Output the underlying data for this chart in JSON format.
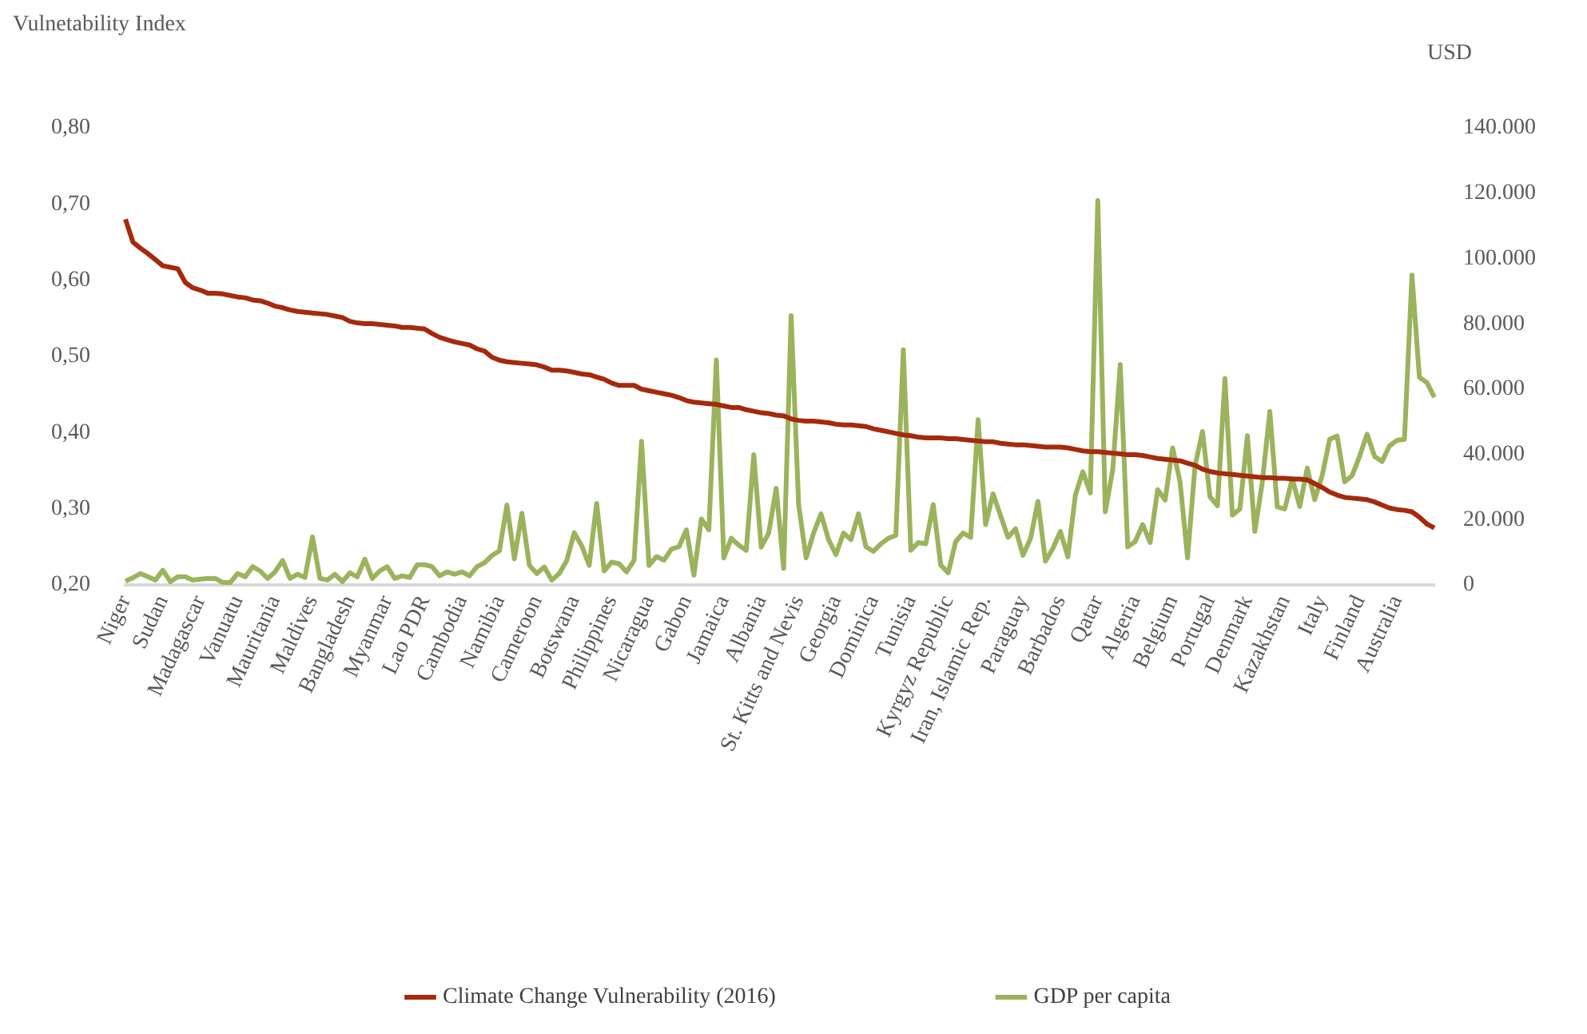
{
  "chart_data": {
    "type": "line",
    "ylabel": "Vulnetability Index",
    "y2label": "USD",
    "categories": [
      "Niger",
      null,
      null,
      null,
      null,
      "Sudan",
      null,
      null,
      null,
      null,
      "Madagascar",
      null,
      null,
      null,
      null,
      "Vanuatu",
      null,
      null,
      null,
      null,
      "Mauritania",
      null,
      null,
      null,
      null,
      "Maldives",
      null,
      null,
      null,
      null,
      "Bangladesh",
      null,
      null,
      null,
      null,
      "Myanmar",
      null,
      null,
      null,
      null,
      "Lao PDR",
      null,
      null,
      null,
      null,
      "Cambodia",
      null,
      null,
      null,
      null,
      "Namibia",
      null,
      null,
      null,
      null,
      "Cameroon",
      null,
      null,
      null,
      null,
      "Botswana",
      null,
      null,
      null,
      null,
      "Philippines",
      null,
      null,
      null,
      null,
      "Nicaragua",
      null,
      null,
      null,
      null,
      "Gabon",
      null,
      null,
      null,
      null,
      "Jamaica",
      null,
      null,
      null,
      null,
      "Albania",
      null,
      null,
      null,
      null,
      "St. Kitts and Nevis",
      null,
      null,
      null,
      null,
      "Georgia",
      null,
      null,
      null,
      null,
      "Dominica",
      null,
      null,
      null,
      null,
      "Tunisia",
      null,
      null,
      null,
      null,
      "Kyrgyz Republic",
      null,
      null,
      null,
      null,
      "Iran, Islamic Rep.",
      null,
      null,
      null,
      null,
      "Paraguay",
      null,
      null,
      null,
      null,
      "Barbados",
      null,
      null,
      null,
      null,
      "Qatar",
      null,
      null,
      null,
      null,
      "Algeria",
      null,
      null,
      null,
      null,
      "Belgium",
      null,
      null,
      null,
      null,
      "Portugal",
      null,
      null,
      null,
      null,
      "Denmark",
      null,
      null,
      null,
      null,
      "Kazakhstan",
      null,
      null,
      null,
      null,
      "Italy",
      null,
      null,
      null,
      null,
      "Finland",
      null,
      null,
      null,
      null,
      "Australia",
      null,
      null,
      null,
      null,
      null
    ],
    "series": [
      {
        "name": "Climate Change Vulnerability (2016)",
        "color": "#a52a0c",
        "values": [
          0.68,
          0.65,
          0.642,
          0.635,
          0.627,
          0.619,
          0.617,
          0.615,
          0.597,
          0.59,
          0.587,
          0.583,
          0.583,
          0.582,
          0.58,
          0.578,
          0.577,
          0.574,
          0.573,
          0.57,
          0.566,
          0.564,
          0.561,
          0.559,
          0.558,
          0.557,
          0.556,
          0.555,
          0.553,
          0.551,
          0.546,
          0.544,
          0.543,
          0.543,
          0.542,
          0.541,
          0.54,
          0.538,
          0.538,
          0.537,
          0.536,
          0.53,
          0.525,
          0.522,
          0.519,
          0.517,
          0.515,
          0.51,
          0.507,
          0.499,
          0.495,
          0.493,
          0.492,
          0.491,
          0.49,
          0.489,
          0.486,
          0.482,
          0.482,
          0.481,
          0.479,
          0.477,
          0.476,
          0.473,
          0.47,
          0.465,
          0.462,
          0.462,
          0.462,
          0.457,
          0.455,
          0.453,
          0.451,
          0.449,
          0.446,
          0.442,
          0.44,
          0.439,
          0.438,
          0.437,
          0.435,
          0.433,
          0.433,
          0.43,
          0.428,
          0.426,
          0.425,
          0.423,
          0.422,
          0.418,
          0.416,
          0.415,
          0.415,
          0.414,
          0.413,
          0.411,
          0.41,
          0.41,
          0.409,
          0.408,
          0.405,
          0.403,
          0.401,
          0.399,
          0.397,
          0.396,
          0.394,
          0.393,
          0.393,
          0.393,
          0.392,
          0.392,
          0.391,
          0.39,
          0.389,
          0.388,
          0.388,
          0.386,
          0.385,
          0.384,
          0.384,
          0.383,
          0.382,
          0.381,
          0.381,
          0.381,
          0.38,
          0.378,
          0.376,
          0.375,
          0.375,
          0.374,
          0.373,
          0.372,
          0.371,
          0.371,
          0.37,
          0.368,
          0.366,
          0.365,
          0.364,
          0.363,
          0.36,
          0.357,
          0.352,
          0.349,
          0.347,
          0.346,
          0.345,
          0.344,
          0.343,
          0.342,
          0.341,
          0.341,
          0.34,
          0.34,
          0.339,
          0.339,
          0.338,
          0.333,
          0.328,
          0.322,
          0.318,
          0.315,
          0.314,
          0.313,
          0.312,
          0.309,
          0.305,
          0.301,
          0.299,
          0.298,
          0.296,
          0.289,
          0.28,
          0.275
        ]
      },
      {
        "name": "GDP per capita",
        "color": "#9bb35c",
        "axis": "y2",
        "values": [
          1200,
          2200,
          3500,
          2500,
          1500,
          4500,
          1000,
          2500,
          2500,
          1500,
          1800,
          2000,
          2000,
          800,
          700,
          3500,
          2500,
          5600,
          4300,
          2000,
          4000,
          7500,
          2000,
          3300,
          2300,
          14700,
          2000,
          1500,
          3300,
          1000,
          3700,
          2500,
          7900,
          2000,
          4300,
          5600,
          2000,
          2800,
          2300,
          6200,
          6200,
          5600,
          2800,
          4000,
          3300,
          4000,
          2800,
          5600,
          6800,
          9000,
          10500,
          24500,
          8000,
          22000,
          6000,
          3500,
          5500,
          1500,
          3500,
          7500,
          16000,
          12000,
          6000,
          25000,
          4300,
          7000,
          6500,
          4000,
          7500,
          44000,
          6000,
          8700,
          7600,
          11000,
          11700,
          16900,
          3000,
          20200,
          16900,
          68900,
          8300,
          14300,
          12200,
          10600,
          39900,
          11600,
          15900,
          29600,
          5100,
          82500,
          24600,
          8300,
          15900,
          21800,
          13900,
          9300,
          15900,
          13900,
          21800,
          11700,
          10300,
          12600,
          14300,
          15200,
          72000,
          10600,
          13000,
          12600,
          24600,
          6100,
          3700,
          13300,
          15900,
          14600,
          50600,
          18500,
          27900,
          21200,
          14600,
          17200,
          9100,
          14200,
          25600,
          7300,
          11200,
          16400,
          8600,
          27500,
          34700,
          28200,
          117700,
          22400,
          35300,
          67500,
          11700,
          13300,
          18500,
          13000,
          29200,
          26000,
          42000,
          31600,
          8300,
          36500,
          47000,
          27000,
          24300,
          63200,
          21400,
          23300,
          45700,
          16400,
          31600,
          53100,
          23900,
          23300,
          32600,
          24000,
          35800,
          26100,
          33500,
          44600,
          45600,
          31600,
          33500,
          39400,
          46200,
          39400,
          37800,
          42600,
          44300,
          44600,
          94900,
          63600,
          62000,
          57500
        ]
      }
    ],
    "ylim": [
      0.2,
      0.8
    ],
    "yticks": [
      {
        "value": 0.2,
        "label": "0,20"
      },
      {
        "value": 0.3,
        "label": "0,30"
      },
      {
        "value": 0.4,
        "label": "0,40"
      },
      {
        "value": 0.5,
        "label": "0,50"
      },
      {
        "value": 0.6,
        "label": "0,60"
      },
      {
        "value": 0.7,
        "label": "0,70"
      },
      {
        "value": 0.8,
        "label": "0,80"
      }
    ],
    "y2lim": [
      0,
      140000
    ],
    "y2ticks": [
      0,
      {
        "value": 20000,
        "label": "20.000"
      },
      {
        "value": 40000,
        "label": "40.000"
      },
      {
        "value": 60000,
        "label": "60.000"
      },
      {
        "value": 80000,
        "label": "80.000"
      },
      {
        "value": 100000,
        "label": "100.000"
      },
      {
        "value": 120000,
        "label": "120.000"
      },
      {
        "value": 140000,
        "label": "140.000"
      }
    ],
    "grid": false,
    "legend": "bottom",
    "marker": "none",
    "line_style": "solid"
  }
}
